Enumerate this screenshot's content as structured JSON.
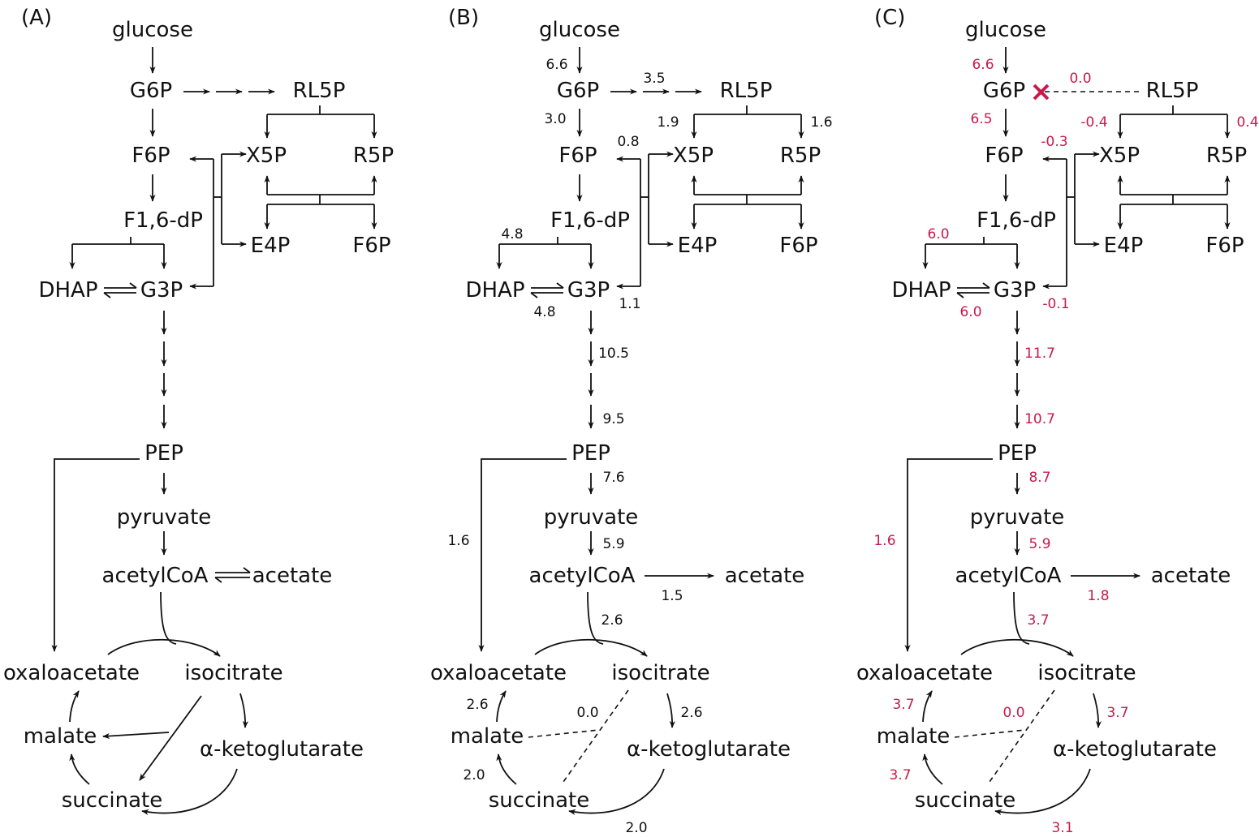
{
  "colors": {
    "ink": "#111111",
    "highlight": "#c8194b"
  },
  "panels": [
    {
      "label": "(A)",
      "mets": {
        "glucose": "glucose",
        "G6P": "G6P",
        "RL5P": "RL5P",
        "F6P": "F6P",
        "X5P": "X5P",
        "R5P": "R5P",
        "F16dP": "F1,6-dP",
        "E4P": "E4P",
        "F6P_b": "F6P",
        "DHAP": "DHAP",
        "G3P": "G3P",
        "PEP": "PEP",
        "pyruvate": "pyruvate",
        "acetylCoA": "acetylCoA",
        "acetate": "acetate",
        "oxaloacetate": "oxaloacetate",
        "isocitrate": "isocitrate",
        "malate": "malate",
        "akg": "α-ketoglutarate",
        "succinate": "succinate"
      },
      "fluxes": {}
    },
    {
      "label": "(B)",
      "mets": {
        "glucose": "glucose",
        "G6P": "G6P",
        "RL5P": "RL5P",
        "F6P": "F6P",
        "X5P": "X5P",
        "R5P": "R5P",
        "F16dP": "F1,6-dP",
        "E4P": "E4P",
        "F6P_b": "F6P",
        "DHAP": "DHAP",
        "G3P": "G3P",
        "PEP": "PEP",
        "pyruvate": "pyruvate",
        "acetylCoA": "acetylCoA",
        "acetate": "acetate",
        "oxaloacetate": "oxaloacetate",
        "isocitrate": "isocitrate",
        "malate": "malate",
        "akg": "α-ketoglutarate",
        "succinate": "succinate"
      },
      "fluxes": {
        "glc_g6p": "6.6",
        "ppp": "3.5",
        "g6p_f6p": "3.0",
        "rl5p_x5p": "1.9",
        "rl5p_r5p": "1.6",
        "tk_f6p": "0.8",
        "f16_split": "4.8",
        "tpi": "4.8",
        "tk_g3p": "1.1",
        "g3p_down": "10.5",
        "to_pep": "9.5",
        "pep_pyr": "7.6",
        "pep_oaa": "1.6",
        "pyr_acoa": "5.9",
        "acoa_acet": "1.5",
        "acoa_cit": "2.6",
        "icit_akg": "2.6",
        "glyox": "0.0",
        "mal_oaa": "2.6",
        "suc_mal": "2.0",
        "akg_suc": "2.0"
      }
    },
    {
      "label": "(C)",
      "mets": {
        "glucose": "glucose",
        "G6P": "G6P",
        "RL5P": "RL5P",
        "F6P": "F6P",
        "X5P": "X5P",
        "R5P": "R5P",
        "F16dP": "F1,6-dP",
        "E4P": "E4P",
        "F6P_b": "F6P",
        "DHAP": "DHAP",
        "G3P": "G3P",
        "PEP": "PEP",
        "pyruvate": "pyruvate",
        "acetylCoA": "acetylCoA",
        "acetate": "acetate",
        "oxaloacetate": "oxaloacetate",
        "isocitrate": "isocitrate",
        "malate": "malate",
        "akg": "α-ketoglutarate",
        "succinate": "succinate"
      },
      "fluxes": {
        "glc_g6p": "6.6",
        "ppp": "0.0",
        "g6p_f6p": "6.5",
        "rl5p_x5p": "-0.4",
        "rl5p_r5p": "0.4",
        "tk_f6p": "-0.3",
        "f16_split": "6.0",
        "tpi": "6.0",
        "tk_g3p": "-0.1",
        "g3p_down": "11.7",
        "to_pep": "10.7",
        "pep_pyr": "8.7",
        "pep_oaa": "1.6",
        "pyr_acoa": "5.9",
        "acoa_acet": "1.8",
        "acoa_cit": "3.7",
        "icit_akg": "3.7",
        "glyox": "0.0",
        "mal_oaa": "3.7",
        "suc_mal": "3.7",
        "akg_suc": "3.1"
      }
    }
  ]
}
